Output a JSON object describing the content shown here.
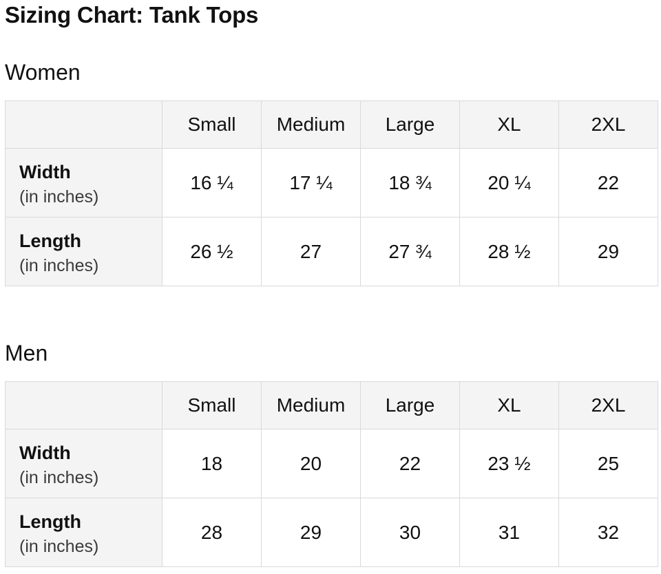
{
  "page": {
    "title": "Sizing Chart: Tank Tops"
  },
  "tables": [
    {
      "heading": "Women",
      "columns": [
        "Small",
        "Medium",
        "Large",
        "XL",
        "2XL"
      ],
      "rows": [
        {
          "label": "Width",
          "sublabel": "(in inches)",
          "values": [
            "16 ¼",
            "17 ¼",
            "18 ¾",
            "20 ¼",
            "22"
          ]
        },
        {
          "label": "Length",
          "sublabel": "(in inches)",
          "values": [
            "26 ½",
            "27",
            "27 ¾",
            "28 ½",
            "29"
          ]
        }
      ]
    },
    {
      "heading": "Men",
      "columns": [
        "Small",
        "Medium",
        "Large",
        "XL",
        "2XL"
      ],
      "rows": [
        {
          "label": "Width",
          "sublabel": "(in inches)",
          "values": [
            "18",
            "20",
            "22",
            "23 ½",
            "25"
          ]
        },
        {
          "label": "Length",
          "sublabel": "(in inches)",
          "values": [
            "28",
            "29",
            "30",
            "31",
            "32"
          ]
        }
      ]
    }
  ],
  "colors": {
    "text_primary": "#111111",
    "text_secondary": "#3a3a3a",
    "table_header_background": "#f4f4f4",
    "table_border": "#d9d9d9",
    "page_background": "#ffffff"
  }
}
